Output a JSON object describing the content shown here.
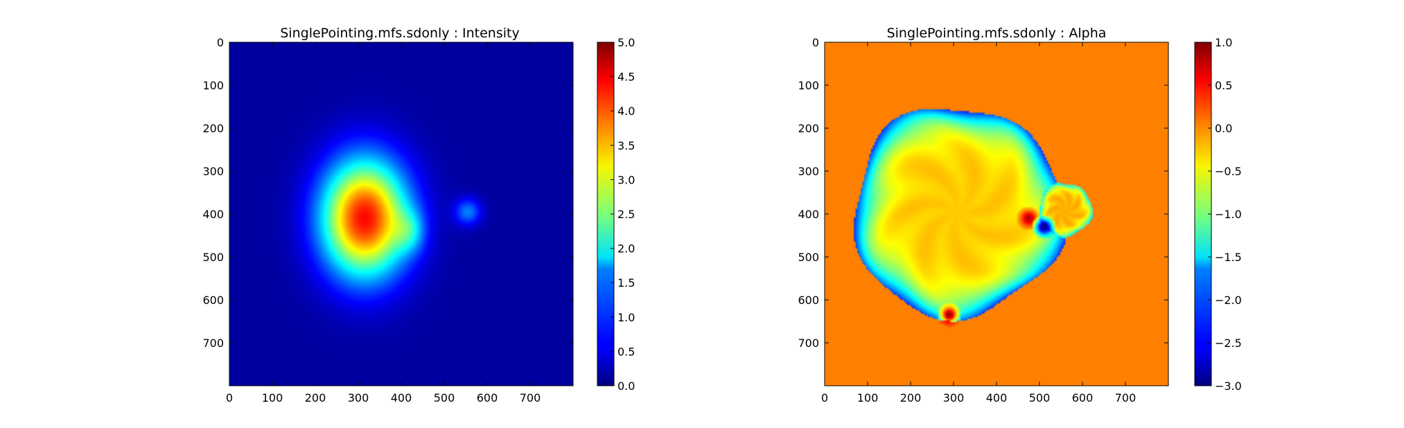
{
  "chart_data": [
    {
      "type": "heatmap",
      "title": "SinglePointing.mfs.sdonly : Intensity",
      "xlabel": "",
      "ylabel": "",
      "xlim": [
        0,
        800
      ],
      "ylim": [
        800,
        0
      ],
      "x_ticks": [
        "0",
        "100",
        "200",
        "300",
        "400",
        "500",
        "600",
        "700"
      ],
      "y_ticks": [
        "0",
        "100",
        "200",
        "300",
        "400",
        "500",
        "600",
        "700"
      ],
      "colormap": "jet",
      "colorbar": {
        "range": [
          0.0,
          5.0
        ],
        "ticks": [
          "0.0",
          "0.5",
          "1.0",
          "1.5",
          "2.0",
          "2.5",
          "3.0",
          "3.5",
          "4.0",
          "4.5",
          "5.0"
        ]
      },
      "background_value": 0.15,
      "features": [
        {
          "kind": "gaussian",
          "x": 315,
          "y": 410,
          "sx": 70,
          "sy": 95,
          "peak": 4.2
        },
        {
          "kind": "gaussian",
          "x": 420,
          "y": 440,
          "sx": 25,
          "sy": 35,
          "peak": 0.9
        },
        {
          "kind": "gaussian",
          "x": 555,
          "y": 395,
          "sx": 22,
          "sy": 22,
          "peak": 1.1
        }
      ]
    },
    {
      "type": "heatmap",
      "title": "SinglePointing.mfs.sdonly : Alpha",
      "xlabel": "",
      "ylabel": "",
      "xlim": [
        0,
        800
      ],
      "ylim": [
        800,
        0
      ],
      "x_ticks": [
        "0",
        "100",
        "200",
        "300",
        "400",
        "500",
        "600",
        "700"
      ],
      "y_ticks": [
        "0",
        "100",
        "200",
        "300",
        "400",
        "500",
        "600",
        "700"
      ],
      "colormap": "jet",
      "colorbar": {
        "range": [
          -3.0,
          1.0
        ],
        "ticks": [
          "1.0",
          "0.5",
          "0.0",
          "−0.5",
          "−1.0",
          "−1.5",
          "−2.0",
          "−2.5",
          "−3.0"
        ]
      },
      "background_value": 0.0,
      "features": [
        {
          "kind": "disk",
          "x": 310,
          "y": 395,
          "r": 245,
          "edge_value": -2.2,
          "inner_value": -0.3
        },
        {
          "kind": "disk",
          "x": 560,
          "y": 390,
          "r": 62,
          "edge_value": -1.6,
          "inner_value": -0.2
        },
        {
          "kind": "spot",
          "x": 475,
          "y": 410,
          "value": 0.8
        },
        {
          "kind": "spot",
          "x": 290,
          "y": 635,
          "value": 0.95
        },
        {
          "kind": "spot",
          "x": 510,
          "y": 430,
          "value": -3.0
        }
      ]
    }
  ]
}
